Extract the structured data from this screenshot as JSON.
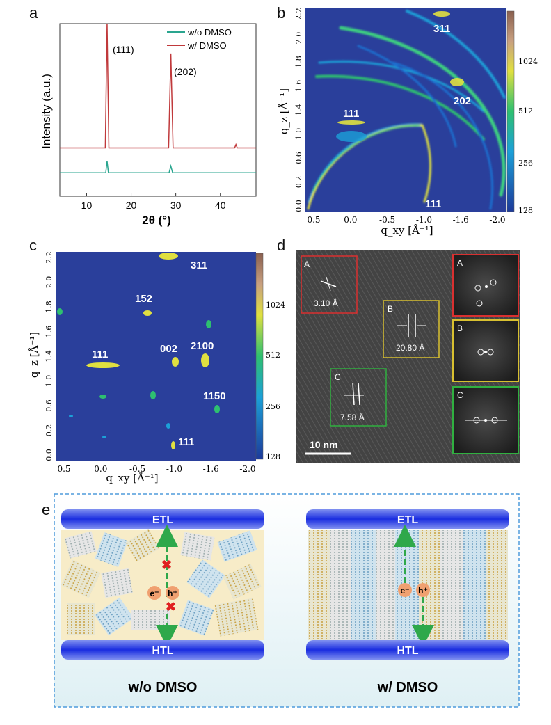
{
  "panels": {
    "a": {
      "letter": "a",
      "legend": [
        "w/o DMSO",
        "w/   DMSO"
      ],
      "ylabel": "Intensity (a.u.)",
      "xlabel": "2θ (°)",
      "xticks": [
        "10",
        "20",
        "30",
        "40"
      ],
      "peak_labels": [
        "(111)",
        "(202)"
      ]
    },
    "b": {
      "letter": "b",
      "ylabel": "q_z [Å⁻¹]",
      "xlabel": "q_xy [Å⁻¹]",
      "xticks": [
        "0.5",
        "0.0",
        "-0.5",
        "-1.0",
        "-1.6",
        "-2.0"
      ],
      "yticks": [
        "0.0",
        "0.2",
        "0.6",
        "1.0",
        "1.4",
        "1.6",
        "1.8",
        "2.0",
        "2.2"
      ],
      "colorbar": [
        "1024",
        "512",
        "256",
        "128"
      ],
      "labels": [
        "311",
        "202",
        "111",
        "111"
      ]
    },
    "c": {
      "letter": "c",
      "ylabel": "q_z [Å⁻¹]",
      "xlabel": "q_xy [Å⁻¹]",
      "xticks": [
        "0.5",
        "0.0",
        "-0.5",
        "-1.0",
        "-1.6",
        "-2.0"
      ],
      "yticks": [
        "0.0",
        "0.2",
        "0.6",
        "1.0",
        "1.4",
        "1.6",
        "1.8",
        "2.0",
        "2.2"
      ],
      "colorbar": [
        "1024",
        "512",
        "256",
        "128"
      ],
      "labels": [
        "311",
        "152",
        "111",
        "002",
        "2100",
        "1150",
        "111"
      ]
    },
    "d": {
      "letter": "d",
      "boxes": [
        {
          "tag": "A",
          "value": "3.10 Å"
        },
        {
          "tag": "B",
          "value": "20.80 Å"
        },
        {
          "tag": "C",
          "value": "7.58 Å"
        }
      ],
      "scale_bar": "10 nm",
      "fft_tags": [
        "A",
        "B",
        "C"
      ]
    },
    "e": {
      "letter": "e",
      "top_layer": "ETL",
      "bottom_layer": "HTL",
      "electron": "e⁻",
      "hole": "h⁺",
      "left_caption": "w/o DMSO",
      "right_caption": "w/  DMSO"
    }
  },
  "colors": {
    "wo_dmso_line": "#2aa58f",
    "w_dmso_line": "#c0393b",
    "map_bg": "#2a3f9b",
    "layer_blue": "#1a2de0",
    "dashed_border": "#4f9bdc",
    "tem_red": "#d93030",
    "tem_yellow": "#d8c030",
    "tem_green": "#30b040"
  },
  "chart_data": [
    {
      "type": "line",
      "xlabel": "2θ (°)",
      "ylabel": "Intensity (a.u.)",
      "xlim": [
        4,
        48
      ],
      "series": [
        {
          "name": "w/o DMSO",
          "x": [
            4,
            14.3,
            14.6,
            14.9,
            28.5,
            28.9,
            29.3,
            48
          ],
          "y": [
            0.1,
            0.1,
            0.17,
            0.1,
            0.1,
            0.14,
            0.1,
            0.1
          ]
        },
        {
          "name": "w/   DMSO",
          "x": [
            4,
            14.2,
            14.6,
            15.0,
            28.4,
            28.9,
            29.4,
            43.2,
            43.5,
            43.8,
            48
          ],
          "y": [
            0.25,
            0.25,
            1.0,
            0.25,
            0.25,
            0.82,
            0.25,
            0.25,
            0.27,
            0.25,
            0.25
          ]
        }
      ]
    }
  ]
}
